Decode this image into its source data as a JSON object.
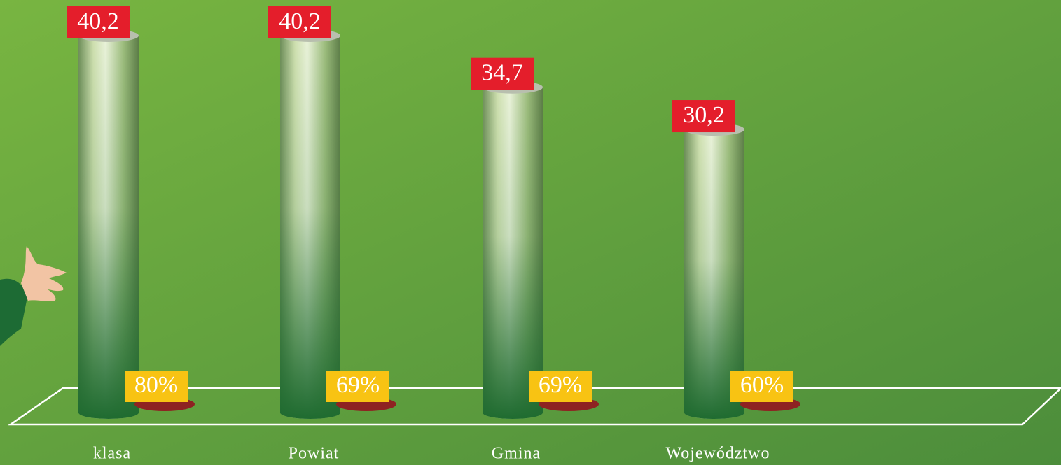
{
  "chart_data": {
    "type": "cylinder-bar",
    "categories": [
      "klasa",
      "Powiat",
      "Gmina",
      "Województwo"
    ],
    "series": [
      {
        "color": "#1f6b30",
        "values": [
          40.2,
          40.2,
          34.7,
          30.2
        ],
        "value_labels": [
          "40,2",
          "40,2",
          "34,7",
          "30,2"
        ]
      },
      {
        "color": "#8e2222",
        "values": [
          80,
          69,
          69,
          60
        ],
        "value_labels": [
          "80%",
          "69%",
          "69%",
          "60%"
        ]
      }
    ],
    "ylim": [
      0,
      44
    ]
  }
}
